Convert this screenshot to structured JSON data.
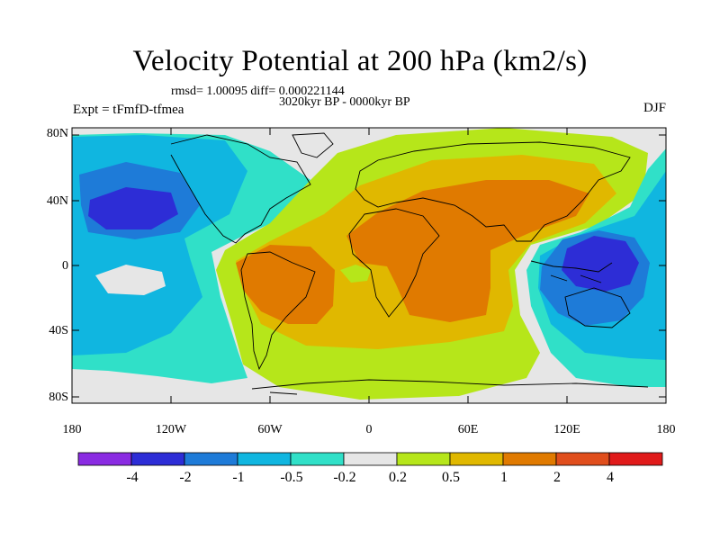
{
  "map": {
    "title": "Velocity Potential at 200 hPa (km2/s)",
    "stats_line": "rmsd= 1.00095 diff= 0.000221144",
    "period_line": "3020kyr BP - 0000kyr BP",
    "experiment_label": "Expt = tFmfD-tfmea",
    "season_label": "DJF",
    "lat_ticks": [
      "80N",
      "40N",
      "0",
      "40S",
      "80S"
    ],
    "lon_ticks": [
      "180",
      "120W",
      "60W",
      "0",
      "60E",
      "120E",
      "180"
    ]
  },
  "colorbar": {
    "labels": [
      "-4",
      "-2",
      "-1",
      "-0.5",
      "-0.2",
      "0.2",
      "0.5",
      "1",
      "2",
      "4"
    ],
    "colors": [
      "#8a2be2",
      "#2d2dd6",
      "#1e7bd8",
      "#10b6e0",
      "#30e0c8",
      "#e6e6e6",
      "#b6e61a",
      "#e0b800",
      "#e07a00",
      "#e04e1c",
      "#e01a1a"
    ]
  }
}
